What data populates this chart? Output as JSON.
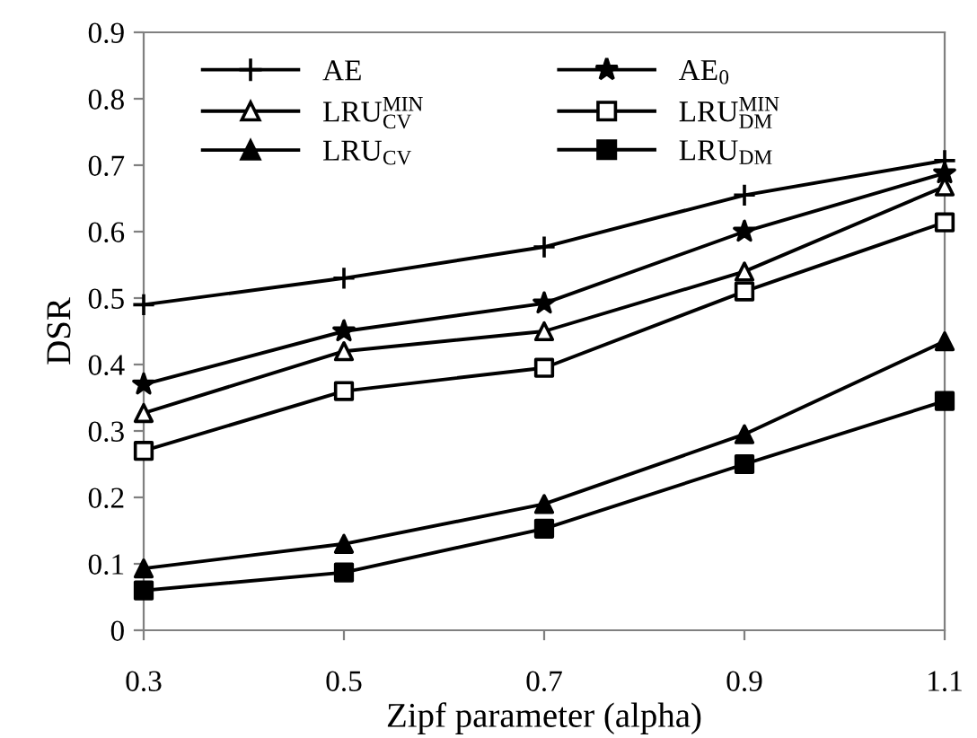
{
  "chart_data": {
    "type": "line",
    "xlabel": "Zipf parameter (alpha)",
    "ylabel": "DSR",
    "x": [
      0.3,
      0.5,
      0.7,
      0.9,
      1.1
    ],
    "xlim": [
      0.3,
      1.1
    ],
    "xticks": [
      0.3,
      0.5,
      0.7,
      0.9,
      1.1
    ],
    "ylim": [
      0,
      0.9
    ],
    "yticks": [
      0,
      0.1,
      0.2,
      0.3,
      0.4,
      0.5,
      0.6,
      0.7,
      0.8,
      0.9
    ],
    "grid": false,
    "legend": "top left",
    "line_style": "solid",
    "series": [
      {
        "name": "AE",
        "color": "#000000",
        "marker": "cross",
        "values": [
          0.49,
          0.53,
          0.577,
          0.655,
          0.707
        ]
      },
      {
        "name": "AE$_{0}$",
        "color": "#000000",
        "marker": "star",
        "values": [
          0.37,
          0.45,
          0.492,
          0.6,
          0.688
        ]
      },
      {
        "name": "LRU$^{MIN}$$_{CV}$",
        "color": "#000000",
        "marker": "triangle",
        "colors": [
          "#ffffff",
          "#ffffff",
          "#ffffff",
          "#ffffff",
          "#ffffff"
        ],
        "values": [
          0.327,
          0.42,
          0.45,
          0.54,
          0.668
        ]
      },
      {
        "name": "LRU$^{MIN}$$_{DM}$",
        "color": "#000000",
        "marker": "square",
        "colors": [
          "#ffffff",
          "#ffffff",
          "#ffffff",
          "#ffffff",
          "#ffffff"
        ],
        "values": [
          0.27,
          0.36,
          0.395,
          0.51,
          0.614
        ]
      },
      {
        "name": "LRU$_{CV}$",
        "color": "#000000",
        "marker": "triangle",
        "values": [
          0.093,
          0.13,
          0.19,
          0.295,
          0.435
        ]
      },
      {
        "name": "LRU$_{DM}$",
        "color": "#000000",
        "marker": "square",
        "values": [
          0.06,
          0.087,
          0.153,
          0.25,
          0.345
        ]
      }
    ]
  }
}
